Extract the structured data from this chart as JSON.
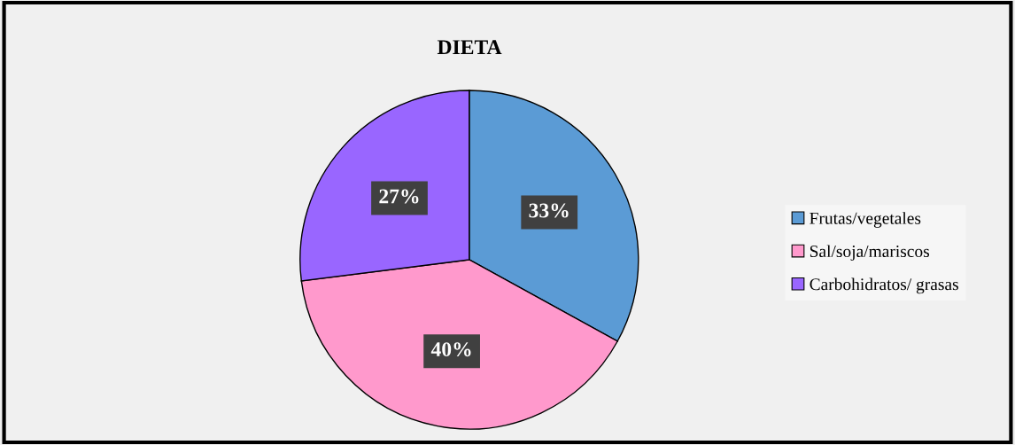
{
  "chart_data": {
    "type": "pie",
    "title": "DIETA",
    "categories": [
      "Frutas/vegetales",
      "Sal/soja/mariscos",
      "Carbohidratos/ grasas"
    ],
    "values": [
      33,
      40,
      27
    ],
    "colors": [
      "#5b9bd5",
      "#ff99cc",
      "#9966ff"
    ],
    "value_labels": [
      "33%",
      "40%",
      "27%"
    ],
    "legend": "right"
  }
}
